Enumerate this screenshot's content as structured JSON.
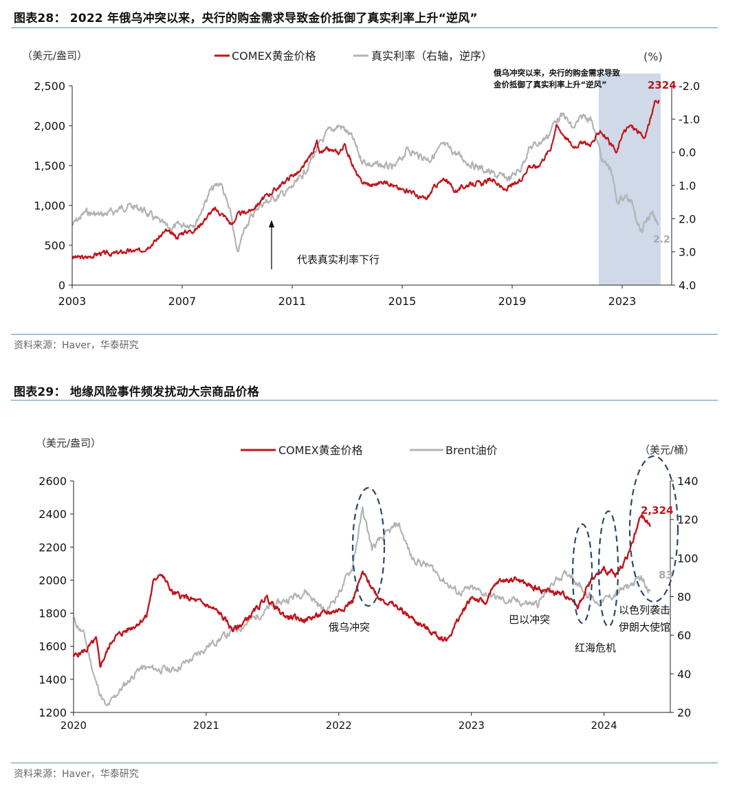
{
  "figure1": {
    "title": "图表28： 2022 年俄乌冲突以来，央行的购金需求导致金价抵御了真实利率上升“逆风”",
    "source": "资料来源：Haver，华泰研究",
    "left_unit": "（美元/盎司）",
    "right_unit": "(%)",
    "annotation_lines": [
      "俄乌冲突以来，央行的购金需求导致",
      "金价抵御了真实利率上升“逆风”"
    ],
    "arrow_label": "代表真实利率下行",
    "end_label_gold": "2324",
    "end_label_rate": "2.2",
    "colors": {
      "gold": "#c0141b",
      "rate": "#b3b3b3",
      "shade": "#cfd9e8"
    }
  },
  "figure2": {
    "title": "图表29： 地缘风险事件频发扰动大宗商品价格",
    "source": "资料来源：Haver，华泰研究",
    "left_unit": "（美元/盎司）",
    "right_unit": "（美元/桶）",
    "end_label_gold": "2,324",
    "end_label_oil": "83",
    "events": [
      "俄乌冲突",
      "巴以冲突",
      "红海危机",
      "以色列袭击",
      "伊朗大使馆"
    ],
    "colors": {
      "gold": "#c0141b",
      "oil": "#b3b3b3",
      "ellipse": "#2b4766"
    }
  },
  "chart_data": [
    {
      "type": "line",
      "title": "2022 年俄乌冲突以来，央行的购金需求导致金价抵御了真实利率上升“逆风”",
      "xlabel": "",
      "ylabel": "（美元/盎司）",
      "y2label": "(%)",
      "x_ticks": [
        "2003",
        "2007",
        "2011",
        "2015",
        "2019",
        "2023"
      ],
      "y_ticks": [
        "0",
        "500",
        "1,000",
        "1,500",
        "2,000",
        "2,500"
      ],
      "y2_ticks": [
        "-2.0",
        "-1.0",
        "0.0",
        "1.0",
        "2.0",
        "3.0",
        "4.0"
      ],
      "xlim": [
        2003,
        2024.8
      ],
      "ylim": [
        0,
        2500
      ],
      "y2lim": [
        -2,
        4
      ],
      "y2_inverted": true,
      "shaded_region": [
        2022.15,
        2024.4
      ],
      "series": [
        {
          "name": "COMEX黄金价格",
          "axis": "left",
          "x": [
            2003.0,
            2003.5,
            2004.0,
            2004.5,
            2005.0,
            2005.5,
            2006.0,
            2006.4,
            2006.8,
            2007.0,
            2007.5,
            2008.0,
            2008.2,
            2008.6,
            2008.8,
            2009.0,
            2009.5,
            2010.0,
            2010.5,
            2011.0,
            2011.3,
            2011.7,
            2011.9,
            2012.0,
            2012.3,
            2012.7,
            2012.9,
            2013.3,
            2013.5,
            2013.9,
            2014.3,
            2014.5,
            2014.9,
            2015.3,
            2015.6,
            2015.9,
            2016.2,
            2016.6,
            2016.9,
            2017.4,
            2017.7,
            2017.9,
            2018.3,
            2018.7,
            2018.9,
            2019.3,
            2019.6,
            2019.9,
            2020.2,
            2020.4,
            2020.6,
            2020.9,
            2021.2,
            2021.5,
            2021.8,
            2022.0,
            2022.2,
            2022.5,
            2022.8,
            2023.0,
            2023.3,
            2023.5,
            2023.8,
            2024.0,
            2024.2,
            2024.35
          ],
          "values": [
            350,
            345,
            400,
            395,
            425,
            430,
            550,
            680,
            600,
            660,
            700,
            900,
            950,
            850,
            750,
            880,
            940,
            1100,
            1230,
            1380,
            1420,
            1650,
            1780,
            1650,
            1700,
            1660,
            1760,
            1420,
            1300,
            1250,
            1300,
            1290,
            1200,
            1190,
            1100,
            1080,
            1250,
            1330,
            1180,
            1260,
            1280,
            1270,
            1330,
            1190,
            1230,
            1300,
            1500,
            1480,
            1620,
            1720,
            2000,
            1880,
            1740,
            1780,
            1760,
            1820,
            1950,
            1800,
            1650,
            1900,
            2000,
            1950,
            1840,
            2050,
            2300,
            2324
          ]
        },
        {
          "name": "真实利率（右轴，逆序）",
          "axis": "right",
          "x": [
            2003.0,
            2003.5,
            2004.0,
            2004.5,
            2005.0,
            2005.5,
            2006.0,
            2006.5,
            2007.0,
            2007.5,
            2008.0,
            2008.4,
            2008.8,
            2009.0,
            2009.3,
            2009.8,
            2010.3,
            2010.8,
            2011.2,
            2011.6,
            2011.9,
            2012.3,
            2012.7,
            2012.9,
            2013.2,
            2013.5,
            2013.9,
            2014.3,
            2014.7,
            2015.2,
            2015.6,
            2016.0,
            2016.5,
            2016.9,
            2017.4,
            2017.9,
            2018.4,
            2018.9,
            2019.3,
            2019.6,
            2020.0,
            2020.3,
            2020.6,
            2020.9,
            2021.2,
            2021.6,
            2021.9,
            2022.1,
            2022.3,
            2022.6,
            2022.8,
            2023.1,
            2023.4,
            2023.7,
            2023.9,
            2024.1,
            2024.3
          ],
          "values": [
            2.2,
            1.8,
            1.9,
            1.8,
            1.6,
            1.7,
            2.0,
            2.3,
            2.2,
            2.1,
            1.2,
            0.9,
            2.0,
            3.1,
            2.2,
            1.6,
            1.4,
            1.2,
            0.9,
            0.4,
            -0.1,
            -0.6,
            -0.8,
            -0.7,
            -0.4,
            0.2,
            0.4,
            0.4,
            0.5,
            -0.1,
            0.1,
            0.2,
            -0.2,
            0.0,
            0.3,
            0.5,
            0.7,
            0.8,
            0.5,
            -0.1,
            -0.3,
            -0.5,
            -1.0,
            -1.1,
            -0.7,
            -1.1,
            -1.0,
            -0.3,
            0.3,
            0.5,
            1.5,
            1.3,
            1.6,
            2.4,
            2.0,
            1.9,
            2.2
          ]
        }
      ]
    },
    {
      "type": "line",
      "title": "地缘风险事件频发扰动大宗商品价格",
      "xlabel": "",
      "ylabel": "（美元/盎司）",
      "y2label": "（美元/桶）",
      "x_ticks": [
        "2020",
        "2021",
        "2022",
        "2023",
        "2024"
      ],
      "y_ticks": [
        "1200",
        "1400",
        "1600",
        "1800",
        "2000",
        "2200",
        "2400",
        "2600"
      ],
      "y2_ticks": [
        "20",
        "40",
        "60",
        "80",
        "100",
        "120",
        "140"
      ],
      "xlim": [
        2020,
        2024.5
      ],
      "ylim": [
        1200,
        2600
      ],
      "y2lim": [
        20,
        140
      ],
      "series": [
        {
          "name": "COMEX黄金价格",
          "axis": "left",
          "x": [
            2020.0,
            2020.1,
            2020.17,
            2020.2,
            2020.3,
            2020.45,
            2020.55,
            2020.6,
            2020.65,
            2020.75,
            2020.9,
            2021.0,
            2021.1,
            2021.2,
            2021.25,
            2021.4,
            2021.45,
            2021.55,
            2021.6,
            2021.75,
            2021.9,
            2022.0,
            2022.1,
            2022.18,
            2022.3,
            2022.45,
            2022.6,
            2022.75,
            2022.82,
            2022.9,
            2023.0,
            2023.1,
            2023.2,
            2023.33,
            2023.45,
            2023.55,
            2023.65,
            2023.75,
            2023.8,
            2023.9,
            2024.0,
            2024.1,
            2024.2,
            2024.28,
            2024.35
          ],
          "values": [
            1540,
            1580,
            1640,
            1480,
            1650,
            1720,
            1780,
            1980,
            2050,
            1920,
            1880,
            1850,
            1800,
            1700,
            1720,
            1840,
            1900,
            1810,
            1780,
            1760,
            1800,
            1820,
            1870,
            2040,
            1900,
            1830,
            1740,
            1660,
            1640,
            1760,
            1900,
            1860,
            1990,
            2010,
            1960,
            1940,
            1920,
            1900,
            1840,
            2000,
            2060,
            2030,
            2190,
            2390,
            2324
          ]
        },
        {
          "name": "Brent油价",
          "axis": "right",
          "x": [
            2020.0,
            2020.08,
            2020.17,
            2020.25,
            2020.33,
            2020.5,
            2020.75,
            2020.9,
            2021.0,
            2021.25,
            2021.5,
            2021.75,
            2021.9,
            2022.0,
            2022.1,
            2022.18,
            2022.25,
            2022.45,
            2022.55,
            2022.7,
            2022.8,
            2022.9,
            2023.0,
            2023.25,
            2023.5,
            2023.65,
            2023.75,
            2023.85,
            2023.95,
            2024.0,
            2024.1,
            2024.2,
            2024.28,
            2024.35
          ],
          "values": [
            68,
            60,
            35,
            22,
            30,
            43,
            42,
            48,
            54,
            64,
            75,
            83,
            72,
            82,
            95,
            125,
            105,
            118,
            100,
            95,
            88,
            82,
            84,
            78,
            76,
            90,
            92,
            83,
            77,
            78,
            82,
            86,
            90,
            83
          ]
        }
      ]
    }
  ]
}
